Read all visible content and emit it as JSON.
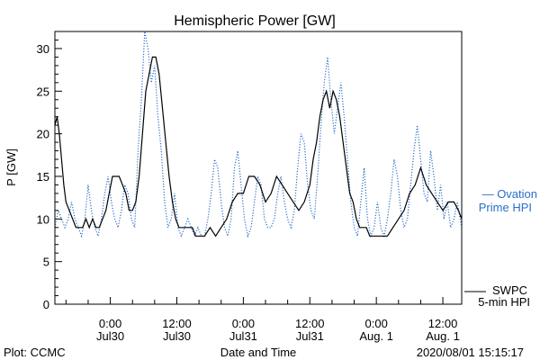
{
  "chart_data": {
    "type": "line",
    "title": "Hemispheric Power [GW]",
    "ylabel": "P [GW]",
    "xlabel": "Date and Time",
    "ylim": [
      0,
      32
    ],
    "yticks": [
      0,
      5,
      10,
      15,
      20,
      25,
      30
    ],
    "x_unit": "hours since 2020-07-29 00:00 UT",
    "xlim": [
      19,
      55.7
    ],
    "xticks": [
      {
        "x": 24,
        "line1": "0:00",
        "line2": "Jul30"
      },
      {
        "x": 30,
        "line1": "12:00",
        "line2": "Jul30"
      },
      {
        "x": 36,
        "line1": "0:00",
        "line2": "Jul31"
      },
      {
        "x": 42,
        "line1": "12:00",
        "line2": "Jul31"
      },
      {
        "x": 48,
        "line1": "0:00",
        "line2": "Aug. 1"
      },
      {
        "x": 54,
        "line1": "12:00",
        "line2": "Aug. 1"
      }
    ],
    "grid": false,
    "series": [
      {
        "name": "SWPC 5-min HPI",
        "color": "#000000",
        "style": "solid",
        "x": [
          19.0,
          19.2,
          19.4,
          19.6,
          19.8,
          20.0,
          20.3,
          20.6,
          20.9,
          21.2,
          21.5,
          21.8,
          22.1,
          22.4,
          22.7,
          23.0,
          23.3,
          23.6,
          23.9,
          24.2,
          24.5,
          24.8,
          25.1,
          25.4,
          25.7,
          26.0,
          26.3,
          26.6,
          26.9,
          27.2,
          27.5,
          27.8,
          28.1,
          28.4,
          28.7,
          29.0,
          29.3,
          29.6,
          29.9,
          30.2,
          30.5,
          30.8,
          31.1,
          31.4,
          31.7,
          32.0,
          32.5,
          33.0,
          33.5,
          34.0,
          34.5,
          35.0,
          35.5,
          36.0,
          36.5,
          37.0,
          37.5,
          38.0,
          38.5,
          39.0,
          39.5,
          40.0,
          40.5,
          41.0,
          41.5,
          42.0,
          42.3,
          42.6,
          42.9,
          43.2,
          43.5,
          43.8,
          44.1,
          44.4,
          44.7,
          45.0,
          45.3,
          45.6,
          45.9,
          46.2,
          46.5,
          46.8,
          47.1,
          47.4,
          47.7,
          48.0,
          48.5,
          49.0,
          49.5,
          50.0,
          50.5,
          51.0,
          51.5,
          52.0,
          52.5,
          53.0,
          53.5,
          54.0,
          54.5,
          55.0,
          55.4,
          55.7
        ],
        "y": [
          21,
          22,
          20,
          17,
          14,
          12,
          11,
          10,
          9,
          9,
          9,
          10,
          9,
          10,
          9,
          9,
          10,
          11,
          13,
          15,
          15,
          15,
          14,
          13,
          11,
          11,
          12,
          15,
          20,
          25,
          27,
          29,
          29,
          27,
          23,
          19,
          15,
          12,
          10,
          9,
          9,
          9,
          9,
          9,
          8,
          8,
          8,
          9,
          8,
          9,
          10,
          12,
          13,
          13,
          15,
          15,
          14,
          12,
          13,
          15,
          14,
          13,
          12,
          11,
          12,
          14,
          17,
          19,
          22,
          24,
          25,
          23,
          25,
          24,
          22,
          19,
          16,
          13,
          12,
          10,
          9,
          9,
          9,
          8,
          8,
          8,
          8,
          8,
          9,
          10,
          11,
          13,
          14,
          16,
          14,
          13,
          12,
          11,
          12,
          12,
          11,
          10
        ]
      },
      {
        "name": "Ovation Prime HPI",
        "color": "#2a6fc9",
        "style": "dotted",
        "x": [
          19.0,
          19.3,
          19.6,
          19.9,
          20.2,
          20.5,
          20.8,
          21.1,
          21.4,
          21.7,
          22.0,
          22.3,
          22.6,
          22.9,
          23.2,
          23.5,
          23.8,
          24.1,
          24.4,
          24.7,
          25.0,
          25.3,
          25.6,
          25.9,
          26.2,
          26.5,
          26.8,
          27.1,
          27.4,
          27.7,
          28.0,
          28.3,
          28.6,
          28.9,
          29.2,
          29.5,
          29.8,
          30.1,
          30.4,
          30.7,
          31.0,
          31.3,
          31.6,
          31.9,
          32.2,
          32.5,
          32.8,
          33.1,
          33.4,
          33.7,
          34.0,
          34.3,
          34.6,
          34.9,
          35.2,
          35.5,
          35.8,
          36.1,
          36.4,
          36.7,
          37.0,
          37.3,
          37.6,
          37.9,
          38.2,
          38.5,
          38.8,
          39.1,
          39.4,
          39.7,
          40.0,
          40.3,
          40.6,
          40.9,
          41.2,
          41.5,
          41.8,
          42.1,
          42.4,
          42.7,
          43.0,
          43.3,
          43.6,
          43.9,
          44.2,
          44.5,
          44.8,
          45.1,
          45.4,
          45.7,
          46.0,
          46.3,
          46.6,
          46.9,
          47.2,
          47.5,
          47.8,
          48.1,
          48.4,
          48.7,
          49.0,
          49.3,
          49.6,
          49.9,
          50.2,
          50.5,
          50.8,
          51.1,
          51.4,
          51.7,
          52.0,
          52.3,
          52.6,
          52.9,
          53.2,
          53.5,
          53.8,
          54.1,
          54.4,
          54.7,
          55.0,
          55.3,
          55.7
        ],
        "y": [
          9,
          11,
          10,
          9,
          10,
          12,
          10,
          9,
          8,
          10,
          14,
          11,
          9,
          8,
          10,
          13,
          15,
          12,
          10,
          9,
          11,
          14,
          13,
          10,
          9,
          18,
          24,
          32,
          30,
          26,
          28,
          22,
          18,
          12,
          9,
          10,
          13,
          9,
          8,
          9,
          10,
          9,
          8,
          9,
          8,
          8,
          10,
          13,
          17,
          16,
          12,
          9,
          8,
          10,
          16,
          18,
          14,
          10,
          8,
          9,
          12,
          15,
          14,
          10,
          9,
          9,
          10,
          13,
          15,
          12,
          10,
          9,
          11,
          16,
          20,
          19,
          14,
          11,
          10,
          15,
          21,
          26,
          29,
          24,
          20,
          23,
          26,
          22,
          17,
          12,
          9,
          8,
          12,
          16,
          10,
          8,
          9,
          12,
          9,
          8,
          10,
          13,
          17,
          15,
          11,
          9,
          10,
          14,
          18,
          21,
          17,
          13,
          12,
          18,
          15,
          11,
          14,
          10,
          12,
          9,
          10,
          12,
          9
        ]
      }
    ],
    "legend": [
      {
        "line1": "SWPC",
        "line2": "5-min HPI",
        "color": "#000000"
      },
      {
        "line1": "— Ovation",
        "line2": "Prime HPI",
        "color": "#2a6fc9"
      }
    ]
  },
  "footer": {
    "left": "Plot: CCMC",
    "right": "2020/08/01 15:15:17"
  }
}
